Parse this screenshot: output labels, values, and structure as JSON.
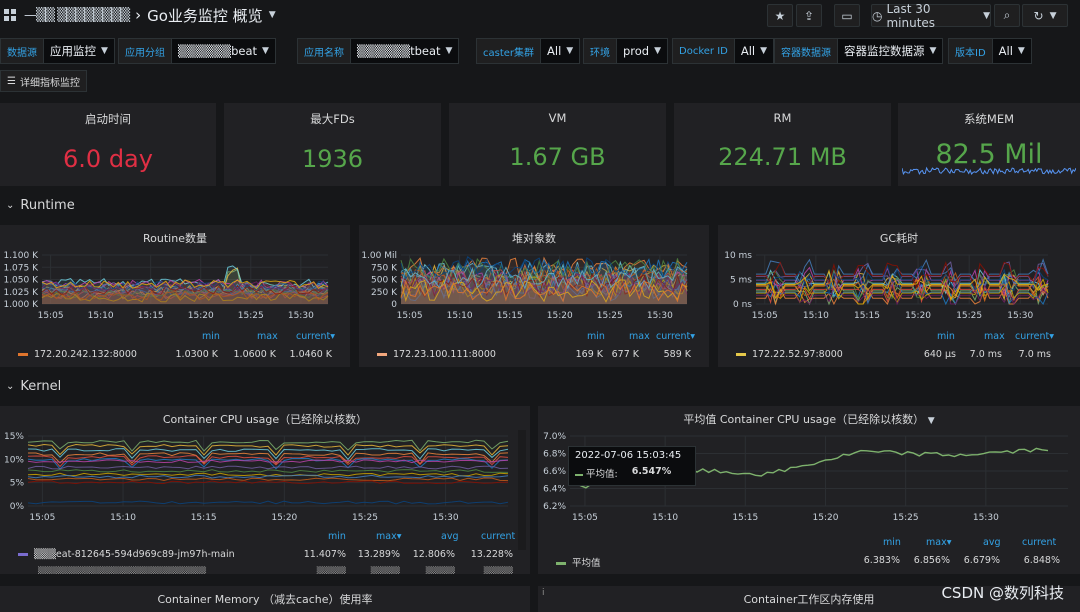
{
  "topbar": {
    "breadcrumb_folder": "—▒▒ ▒▒▒▒▒▒▒▒",
    "breadcrumb_sep": "›",
    "dashboard_title": "Go业务监控 概览",
    "time_range": "Last 30 minutes"
  },
  "variables": [
    {
      "label": "数据源",
      "value": "应用监控"
    },
    {
      "label": "应用分组",
      "value": "▒▒▒▒▒▒beat"
    },
    {
      "label": "应用名称",
      "value": "▒▒▒▒▒▒tbeat"
    },
    {
      "label": "caster集群",
      "value": "All"
    },
    {
      "label": "环境",
      "value": "prod"
    },
    {
      "label": "Docker ID",
      "value": "All"
    },
    {
      "label": "容器数据源",
      "value": "容器监控数据源"
    },
    {
      "label": "版本ID",
      "value": "All"
    }
  ],
  "detail_link": "详细指标监控",
  "stats": [
    {
      "title": "启动时间",
      "value": "6.0 day",
      "color": "#e02f44"
    },
    {
      "title": "最大FDs",
      "value": "1936",
      "color": "#56a64b"
    },
    {
      "title": "VM",
      "value": "1.67 GB",
      "color": "#56a64b"
    },
    {
      "title": "RM",
      "value": "224.71 MB",
      "color": "#56a64b"
    },
    {
      "title": "系统MEM",
      "value": "82.5 Mil",
      "color": "#56a64b"
    }
  ],
  "rows": {
    "runtime": "Runtime",
    "kernel": "Kernel"
  },
  "x_ticks": [
    "15:05",
    "15:10",
    "15:15",
    "15:20",
    "15:25",
    "15:30"
  ],
  "panels": {
    "routine": {
      "title": "Routine数量",
      "y_ticks": [
        "1.100 K",
        "1.075 K",
        "1.050 K",
        "1.025 K",
        "1.000 K"
      ],
      "legend_headers": [
        "min",
        "max",
        "current"
      ],
      "legend": {
        "name": "172.20.242.132:8000",
        "min": "1.0300 K",
        "max": "1.0600 K",
        "current": "1.0460 K",
        "color": "#e0752d"
      }
    },
    "heap": {
      "title": "堆对象数",
      "y_ticks": [
        "1.00 Mil",
        "750 K",
        "500 K",
        "250 K",
        "0"
      ],
      "legend_headers": [
        "min",
        "max",
        "current"
      ],
      "legend": {
        "name": "172.23.100.111:8000",
        "min": "169 K",
        "max": "677 K",
        "current": "589 K",
        "color": "#f2a77d"
      }
    },
    "gc": {
      "title": "GC耗时",
      "y_ticks": [
        "10 ms",
        "5 ms",
        "0 ns"
      ],
      "legend_headers": [
        "min",
        "max",
        "current"
      ],
      "legend": {
        "name": "172.22.52.97:8000",
        "min": "640 µs",
        "max": "7.0 ms",
        "current": "7.0 ms",
        "color": "#e5c84a"
      }
    },
    "cpu": {
      "title": "Container CPU usage（已经除以核数）",
      "y_ticks": [
        "15%",
        "10%",
        "5%",
        "0%"
      ],
      "legend_headers": [
        "min",
        "max",
        "avg",
        "current"
      ],
      "legend": {
        "name": "▒▒▒eat-812645-594d969c89-jm97h-main",
        "min": "11.407%",
        "max": "13.289%",
        "avg": "12.806%",
        "current": "13.228%",
        "color": "#7a6ccf"
      },
      "legend2": {
        "name": "▒▒▒▒▒▒▒▒▒▒▒▒▒▒▒▒▒▒▒▒▒▒▒",
        "min": "▒▒▒▒",
        "max": "▒▒▒▒",
        "avg": "▒▒▒▒",
        "current": "▒▒▒▒"
      }
    },
    "avg_cpu": {
      "title": "平均值 Container CPU usage（已经除以核数）",
      "y_ticks": [
        "7.0%",
        "6.8%",
        "6.6%",
        "6.4%",
        "6.2%"
      ],
      "legend_headers": [
        "min",
        "max",
        "avg",
        "current"
      ],
      "legend": {
        "name": "平均值",
        "min": "6.383%",
        "max": "6.856%",
        "avg": "6.679%",
        "current": "6.848%",
        "color": "#7eb26d"
      },
      "tooltip": {
        "time": "2022-07-06 15:03:45",
        "series": "平均值:",
        "value": "6.547%"
      }
    },
    "mem": {
      "title": "Container Memory （减去cache）使用率"
    },
    "workmem": {
      "title": "Container工作区内存使用"
    }
  },
  "chart_data": [
    {
      "type": "line",
      "title": "Routine数量",
      "x": [
        "15:05",
        "15:10",
        "15:15",
        "15:20",
        "15:25",
        "15:30"
      ],
      "ylim": [
        1000,
        1100
      ],
      "series": [
        {
          "name": "172.20.242.132:8000",
          "values": [
            1046,
            1050,
            1044,
            1040,
            1048,
            1046
          ]
        }
      ]
    },
    {
      "type": "area",
      "title": "堆对象数",
      "x": [
        "15:05",
        "15:10",
        "15:15",
        "15:20",
        "15:25",
        "15:30"
      ],
      "ylim": [
        0,
        1000000
      ],
      "series": [
        {
          "name": "172.23.100.111:8000",
          "values": [
            420000,
            500000,
            380000,
            560000,
            450000,
            589000
          ]
        }
      ]
    },
    {
      "type": "line",
      "title": "GC耗时",
      "x": [
        "15:05",
        "15:10",
        "15:15",
        "15:20",
        "15:25",
        "15:30"
      ],
      "ylim": [
        0,
        10
      ],
      "series": [
        {
          "name": "172.22.52.97:8000",
          "values": [
            3,
            5,
            4,
            6,
            5,
            7
          ]
        }
      ]
    },
    {
      "type": "line",
      "title": "Container CPU usage（已经除以核数）",
      "x": [
        "15:05",
        "15:10",
        "15:15",
        "15:20",
        "15:25",
        "15:30"
      ],
      "ylim": [
        0,
        15
      ],
      "series": [
        {
          "name": "▒▒▒eat-812645-594d969c89-jm97h-main",
          "values": [
            12.8,
            12.5,
            13.0,
            12.7,
            13.1,
            13.228
          ]
        }
      ]
    },
    {
      "type": "line",
      "title": "平均值 Container CPU usage（已经除以核数）",
      "x": [
        "15:05",
        "15:10",
        "15:15",
        "15:20",
        "15:25",
        "15:30"
      ],
      "ylim": [
        6.2,
        7.0
      ],
      "series": [
        {
          "name": "平均值",
          "values": [
            6.42,
            6.62,
            6.56,
            6.82,
            6.78,
            6.848
          ]
        }
      ]
    }
  ],
  "watermark": "CSDN @数列科技"
}
